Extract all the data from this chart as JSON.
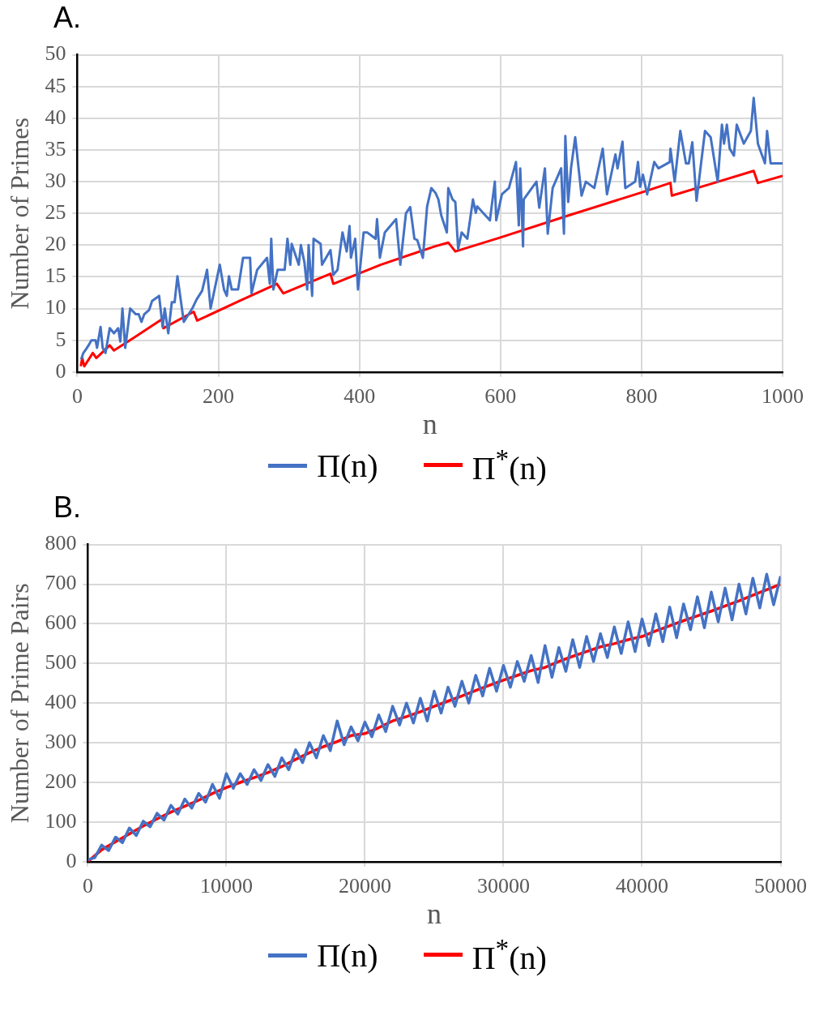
{
  "chart_data": [
    {
      "type": "line",
      "title": "A.",
      "xlabel": "n",
      "ylabel": "Number of Primes",
      "xlim": [
        0,
        1000
      ],
      "ylim": [
        0,
        50
      ],
      "xticks": [
        0,
        200,
        400,
        600,
        800,
        1000
      ],
      "yticks": [
        0,
        5,
        10,
        15,
        20,
        25,
        30,
        35,
        40,
        45,
        50
      ],
      "grid": true,
      "legend": "bottom",
      "series": [
        {
          "name": "Π(n)",
          "color": "#4472c4",
          "x": [
            5.5,
            8.6,
            12.5,
            16,
            20,
            26,
            28,
            33,
            36,
            40,
            46,
            52,
            58,
            61,
            64,
            68,
            75,
            83,
            87,
            91,
            95,
            102,
            106,
            116,
            121,
            124,
            129,
            134,
            138,
            142,
            151,
            163,
            169,
            177,
            184,
            189,
            202,
            208,
            212,
            215,
            219,
            228,
            235,
            245,
            247,
            255,
            269,
            273,
            275,
            278,
            284,
            294,
            298,
            302,
            304,
            314,
            317,
            322,
            326,
            328,
            333,
            335,
            345,
            347,
            359,
            363,
            369,
            376,
            382,
            386,
            388,
            394,
            398,
            406,
            411,
            423,
            425,
            429,
            436,
            452,
            458,
            466,
            472,
            478,
            482,
            490,
            496,
            502,
            508,
            512,
            516,
            524,
            526,
            532,
            536,
            540,
            545,
            553,
            561,
            565,
            567,
            585,
            592,
            594,
            602,
            612,
            622,
            626,
            628,
            632,
            633,
            651,
            655,
            663,
            667,
            674,
            686,
            690,
            692,
            696,
            700,
            706,
            715,
            721,
            733,
            745,
            751,
            763,
            766,
            773,
            777,
            791,
            795,
            798,
            802,
            808,
            818,
            824,
            840,
            841,
            847,
            855,
            863,
            867,
            872,
            878,
            890,
            898,
            908,
            914,
            917,
            921,
            925,
            931,
            935,
            945,
            955,
            959,
            965,
            975,
            978,
            983,
            1000
          ],
          "values": [
            2,
            3,
            3.6,
            4.2,
            5,
            5,
            3.8,
            7.1,
            3.8,
            3,
            6.9,
            6.1,
            6.9,
            4.8,
            10,
            3.8,
            10,
            9.1,
            9.1,
            7.9,
            9.1,
            9.8,
            11.2,
            12,
            7.1,
            10,
            6.1,
            11,
            11,
            15.1,
            7.9,
            10,
            11.4,
            12.8,
            16.1,
            10,
            16.9,
            13,
            12,
            15.1,
            13,
            13,
            18,
            18,
            12.4,
            16.1,
            18,
            13.9,
            21,
            13,
            16.1,
            16.1,
            21,
            16.9,
            20.2,
            16.9,
            20,
            17.3,
            13,
            20,
            12,
            21,
            20.2,
            16.9,
            19.2,
            15.3,
            16.1,
            22,
            19,
            23,
            18,
            21,
            13,
            22,
            22,
            21,
            24.1,
            18,
            22,
            24.1,
            16.9,
            25,
            26,
            21,
            20.8,
            18,
            26.1,
            29,
            28.2,
            27.2,
            24.7,
            22,
            29,
            27.2,
            26.8,
            19.4,
            22,
            21,
            27.2,
            25.1,
            26.1,
            23.9,
            30,
            23.9,
            28,
            29,
            33.1,
            23.1,
            32.1,
            19.8,
            27.2,
            30,
            25.9,
            32.1,
            21.8,
            29,
            32.1,
            21.8,
            37.2,
            26.8,
            32.1,
            37,
            27.8,
            30,
            29,
            35.2,
            28,
            34.3,
            32.1,
            36.3,
            29,
            30,
            33.1,
            29.2,
            31.1,
            28,
            33.1,
            32.1,
            33.1,
            35.2,
            30,
            38,
            32.9,
            32.9,
            36.2,
            27,
            38,
            37,
            30,
            39,
            36,
            39,
            35.2,
            34.1,
            39,
            36,
            38,
            43.2,
            36,
            32.9,
            38,
            32.9,
            32.9
          ]
        },
        {
          "name": "Π$^{*}$(n)",
          "color": "#ff0000",
          "x": [
            5,
            7,
            10,
            22,
            27,
            46,
            52,
            79,
            120,
            122,
            165,
            170,
            230,
            283,
            292,
            359,
            363,
            430,
            507,
            526,
            536,
            600,
            700,
            800,
            841,
            843,
            900,
            959,
            965,
            1000
          ],
          "values": [
            0.9,
            2.2,
            0.9,
            3,
            2.2,
            4.2,
            3.4,
            5.3,
            8.3,
            6.9,
            9.5,
            8.1,
            11.2,
            13.9,
            12.4,
            15.5,
            13.9,
            16.9,
            19.8,
            20.4,
            19,
            21.2,
            24.8,
            28.3,
            29.8,
            27.8,
            29.7,
            31.7,
            29.8,
            30.9
          ]
        }
      ]
    },
    {
      "type": "line",
      "title": "B.",
      "xlabel": "n",
      "ylabel": "Number of Prime Pairs",
      "xlim": [
        0,
        50000
      ],
      "ylim": [
        0,
        800
      ],
      "xticks": [
        0,
        10000,
        20000,
        30000,
        40000,
        50000
      ],
      "yticks": [
        0,
        100,
        200,
        300,
        400,
        500,
        600,
        700,
        800
      ],
      "grid": true,
      "legend": "bottom",
      "series": [
        {
          "name": "Π(n)",
          "color": "#4472c4",
          "x": [
            0,
            500,
            1000,
            1500,
            2000,
            2500,
            3000,
            3500,
            4000,
            4500,
            5000,
            5500,
            6000,
            6500,
            7000,
            7500,
            8000,
            8500,
            9000,
            9500,
            10000,
            10500,
            11000,
            11500,
            12000,
            12500,
            13000,
            13500,
            14000,
            14500,
            15000,
            15500,
            16000,
            16500,
            17000,
            17500,
            18000,
            18500,
            19000,
            19500,
            20000,
            20500,
            21000,
            21500,
            22000,
            22500,
            23000,
            23500,
            24000,
            24500,
            25000,
            25500,
            26000,
            26500,
            27000,
            27500,
            28000,
            28500,
            29000,
            29500,
            30000,
            30500,
            31000,
            31500,
            32000,
            32500,
            33000,
            33500,
            34000,
            34500,
            35000,
            35500,
            36000,
            36500,
            37000,
            37500,
            38000,
            38500,
            39000,
            39500,
            40000,
            40500,
            41000,
            41500,
            42000,
            42500,
            43000,
            43500,
            44000,
            44500,
            45000,
            45500,
            46000,
            46500,
            47000,
            47500,
            48000,
            48500,
            49000,
            49500,
            50000
          ],
          "values": [
            5,
            10,
            42,
            28,
            62,
            48,
            85,
            66,
            102,
            88,
            122,
            105,
            142,
            120,
            158,
            135,
            172,
            150,
            195,
            160,
            222,
            185,
            222,
            195,
            232,
            205,
            245,
            215,
            262,
            232,
            282,
            250,
            300,
            262,
            318,
            280,
            355,
            295,
            340,
            305,
            352,
            315,
            370,
            328,
            392,
            345,
            400,
            350,
            412,
            355,
            430,
            375,
            440,
            392,
            455,
            400,
            470,
            418,
            488,
            430,
            495,
            440,
            505,
            455,
            520,
            452,
            545,
            465,
            540,
            480,
            560,
            490,
            568,
            505,
            575,
            515,
            592,
            525,
            605,
            530,
            612,
            545,
            625,
            555,
            642,
            565,
            650,
            585,
            668,
            590,
            680,
            605,
            690,
            610,
            700,
            625,
            715,
            640,
            725,
            648,
            720
          ]
        },
        {
          "name": "Π$^{*}$(n)",
          "color": "#ff0000",
          "x": [
            0,
            1000,
            2000,
            3000,
            4000,
            5000,
            6000,
            7000,
            8000,
            9000,
            10000,
            11000,
            12000,
            13000,
            14000,
            15000,
            16000,
            17000,
            18000,
            19000,
            20000,
            21000,
            22000,
            23000,
            24000,
            25000,
            26000,
            27000,
            28000,
            29000,
            30000,
            31000,
            32000,
            33000,
            34000,
            35000,
            36000,
            37000,
            38000,
            39000,
            40000,
            41000,
            42000,
            43000,
            44000,
            45000,
            46000,
            47000,
            48000,
            49000,
            50000
          ],
          "values": [
            0,
            30,
            50,
            70,
            90,
            108,
            125,
            140,
            155,
            172,
            187,
            200,
            212,
            225,
            240,
            258,
            275,
            290,
            303,
            318,
            323,
            338,
            355,
            366,
            378,
            392,
            405,
            418,
            432,
            445,
            458,
            470,
            482,
            490,
            505,
            518,
            530,
            542,
            550,
            560,
            568,
            582,
            595,
            608,
            620,
            632,
            645,
            658,
            672,
            686,
            700
          ]
        }
      ]
    }
  ]
}
